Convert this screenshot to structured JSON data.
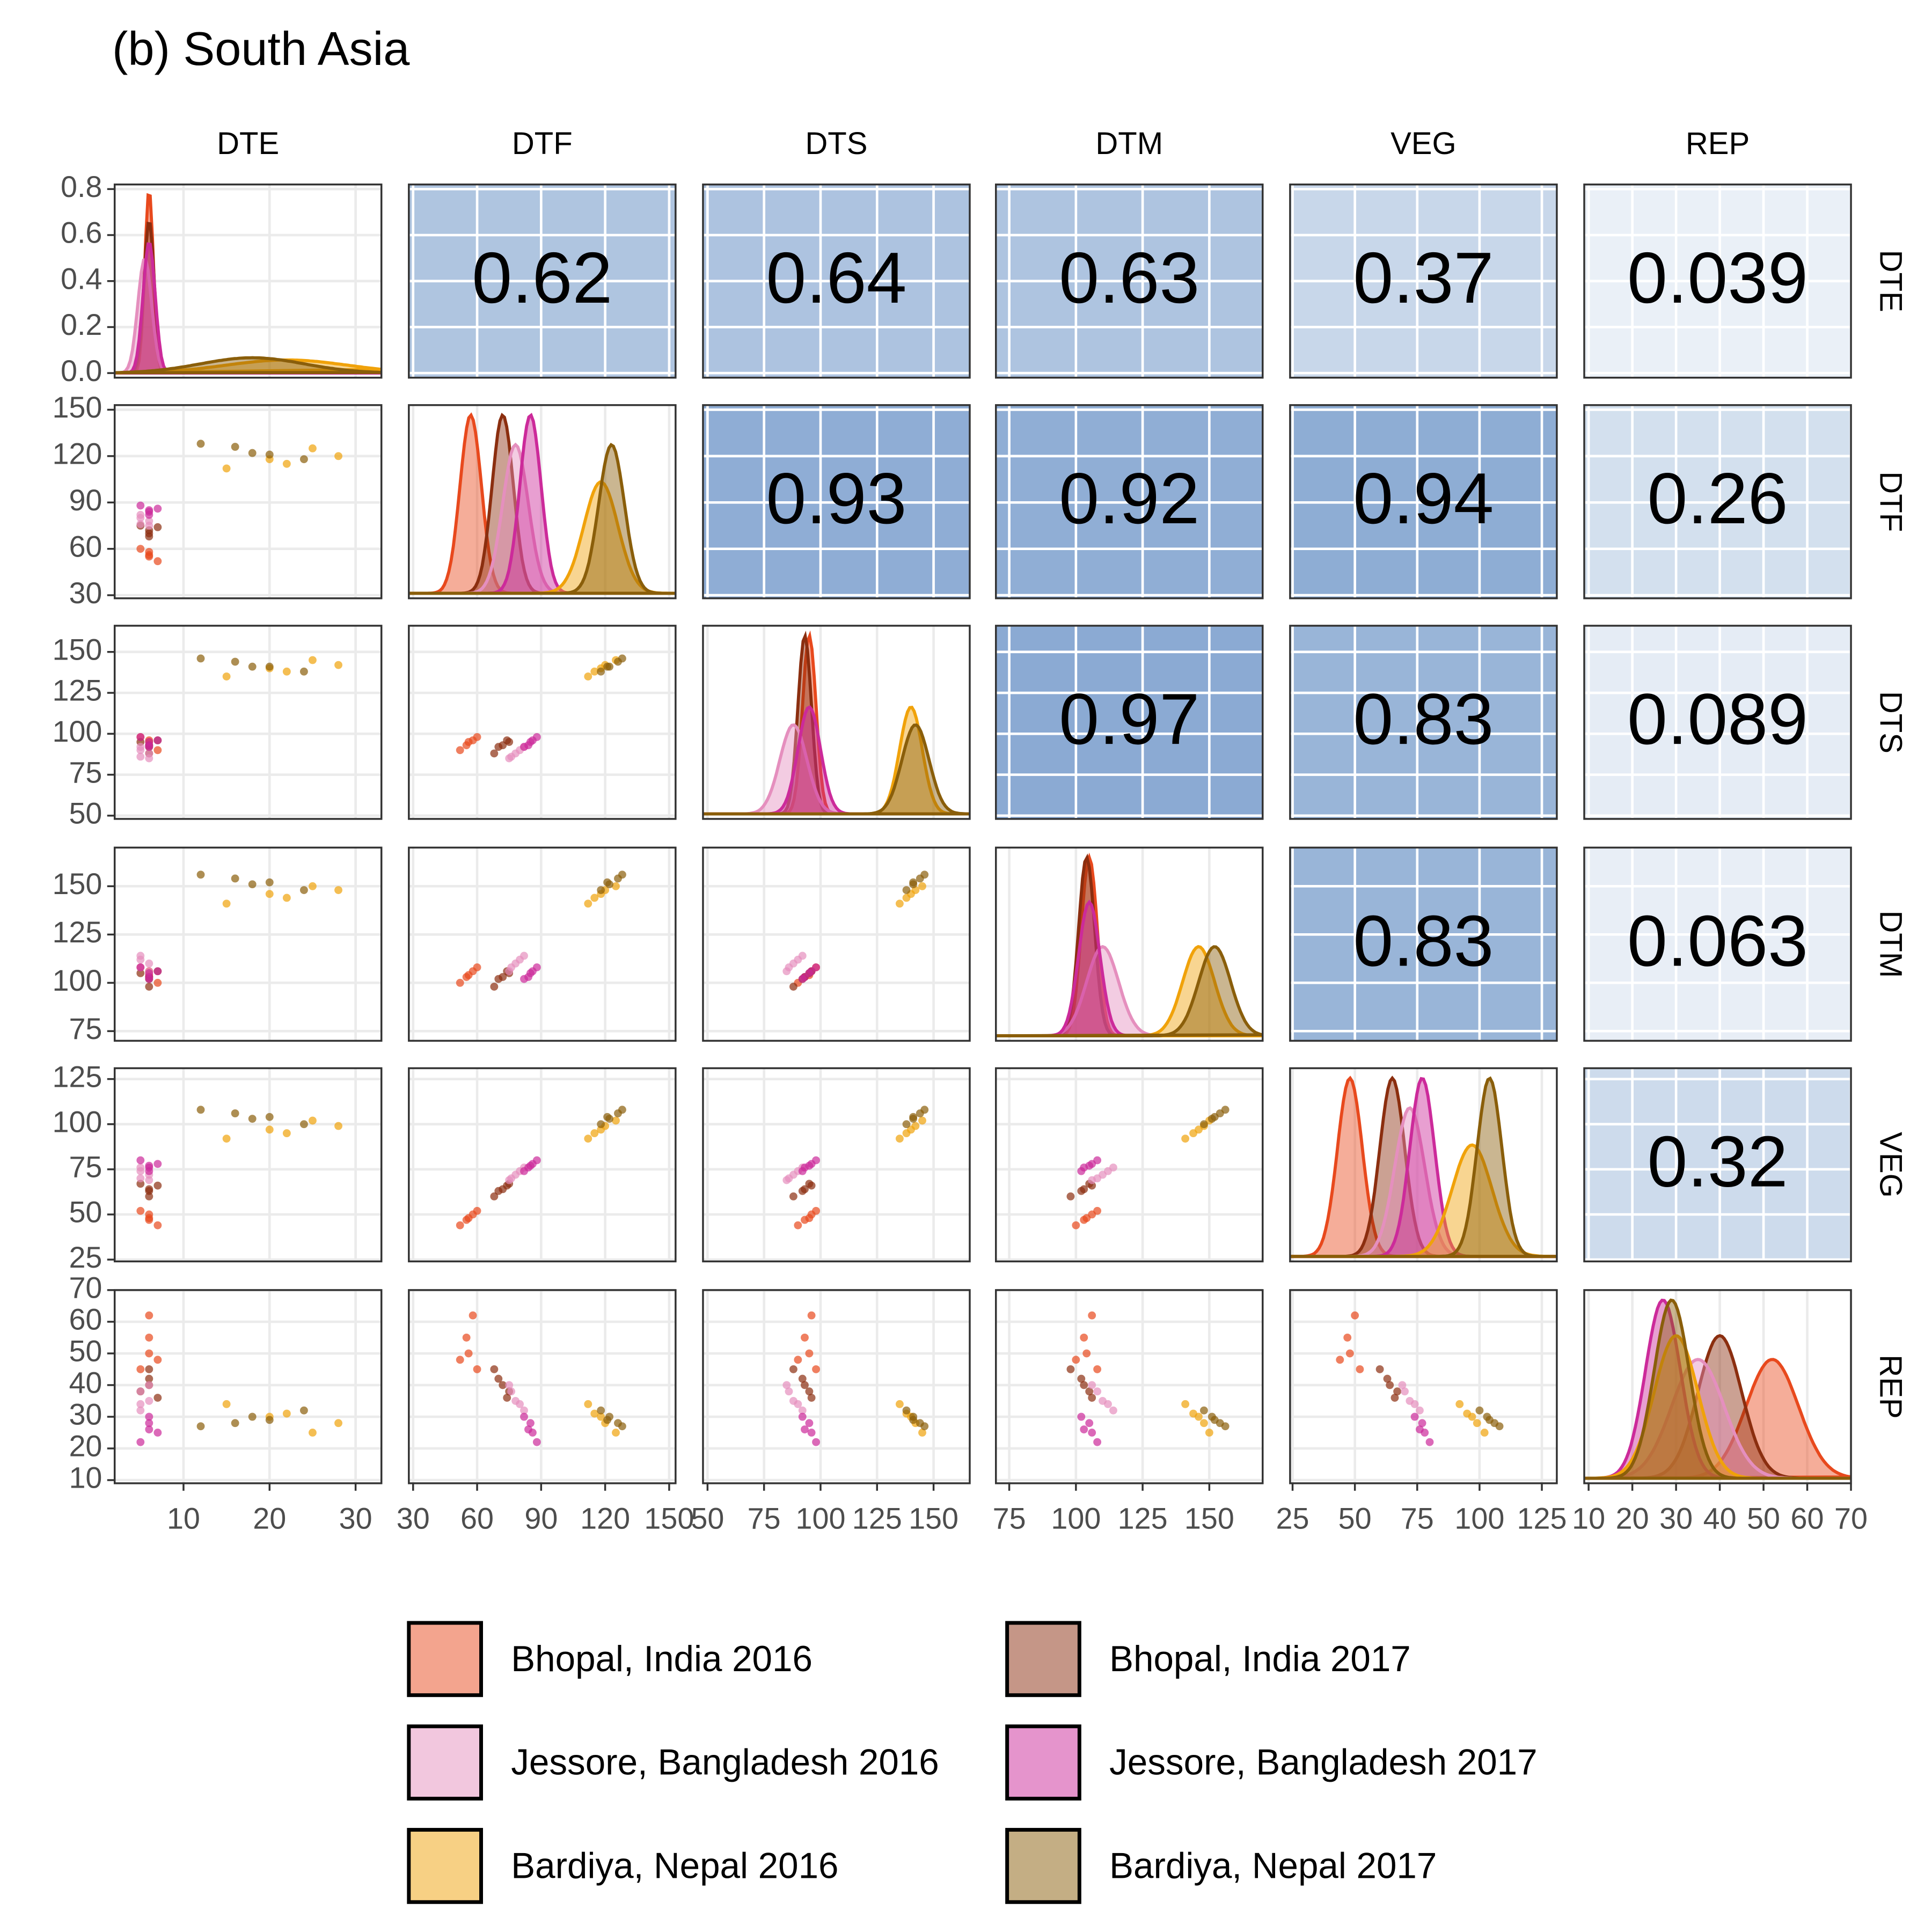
{
  "chart_data": {
    "type": "scatter-matrix",
    "title": "(b) South Asia",
    "variables": [
      "DTE",
      "DTF",
      "DTS",
      "DTM",
      "VEG",
      "REP"
    ],
    "axes": [
      {
        "lim": [
          2,
          33
        ],
        "ticks": [
          10,
          20,
          30
        ]
      },
      {
        "lim": [
          28,
          153
        ],
        "ticks": [
          30,
          60,
          90,
          120,
          150
        ]
      },
      {
        "lim": [
          48,
          166
        ],
        "ticks": [
          50,
          75,
          100,
          125,
          150
        ]
      },
      {
        "lim": [
          70,
          170
        ],
        "ticks": [
          75,
          100,
          125,
          150
        ]
      },
      {
        "lim": [
          24,
          131
        ],
        "ticks": [
          25,
          50,
          75,
          100,
          125
        ]
      },
      {
        "lim": [
          9,
          70
        ],
        "ticks": [
          10,
          20,
          30,
          40,
          50,
          60,
          70
        ]
      }
    ],
    "density_ylim": [
      -0.02,
      0.82
    ],
    "density_yticks": [
      {
        "value": 0,
        "label": "0.0"
      },
      0.2,
      0.4,
      0.6,
      0.8
    ],
    "correlations": [
      [
        null,
        0.62,
        0.64,
        0.63,
        0.37,
        0.039
      ],
      [
        null,
        null,
        0.93,
        0.92,
        0.94,
        0.26
      ],
      [
        null,
        null,
        null,
        0.97,
        0.83,
        0.089
      ],
      [
        null,
        null,
        null,
        null,
        0.83,
        0.063
      ],
      [
        null,
        null,
        null,
        null,
        null,
        0.32
      ],
      [
        null,
        null,
        null,
        null,
        null,
        null
      ]
    ],
    "correlation_colors": [
      "#eef3f8",
      "#88a8d2"
    ],
    "grid": true,
    "legend_position": "bottom",
    "series": [
      {
        "name": "Bhopal, India 2016",
        "color": "#e8491d",
        "mean": [
          6,
          57,
          95,
          105,
          48,
          52
        ],
        "sd": [
          0.5,
          5,
          3,
          3,
          5,
          6
        ],
        "points": [
          [
            6,
            55,
            93,
            103,
            47,
            55
          ],
          [
            6,
            58,
            96,
            106,
            50,
            62
          ],
          [
            7,
            52,
            90,
            100,
            44,
            48
          ],
          [
            5,
            60,
            98,
            108,
            52,
            45
          ],
          [
            6,
            56,
            95,
            104,
            48,
            50
          ]
        ]
      },
      {
        "name": "Bhopal, India 2017",
        "color": "#8b2e0f",
        "mean": [
          6,
          72,
          93,
          104,
          65,
          40
        ],
        "sd": [
          0.6,
          5,
          3,
          3,
          5,
          5
        ],
        "points": [
          [
            6,
            70,
            92,
            102,
            63,
            42
          ],
          [
            5,
            75,
            95,
            105,
            67,
            38
          ],
          [
            6,
            68,
            88,
            98,
            60,
            45
          ],
          [
            7,
            74,
            96,
            106,
            66,
            36
          ],
          [
            6,
            72,
            93,
            103,
            64,
            40
          ]
        ]
      },
      {
        "name": "Jessore, Bangladesh 2016",
        "color": "#e58fbe",
        "mean": [
          5.5,
          78,
          88,
          110,
          72,
          35
        ],
        "sd": [
          0.8,
          6,
          6,
          6,
          6,
          6
        ],
        "points": [
          [
            5,
            76,
            86,
            108,
            70,
            38
          ],
          [
            5,
            80,
            90,
            112,
            74,
            34
          ],
          [
            6,
            75,
            85,
            106,
            69,
            40
          ],
          [
            5,
            82,
            92,
            114,
            76,
            32
          ],
          [
            6,
            78,
            88,
            110,
            72,
            35
          ]
        ]
      },
      {
        "name": "Jessore, Bangladesh 2017",
        "color": "#cc2a9a",
        "mean": [
          6,
          85,
          95,
          105,
          77,
          27
        ],
        "sd": [
          0.7,
          5,
          5,
          4,
          5,
          4
        ],
        "points": [
          [
            6,
            84,
            93,
            103,
            76,
            26
          ],
          [
            5,
            88,
            98,
            108,
            80,
            22
          ],
          [
            6,
            82,
            92,
            102,
            74,
            30
          ],
          [
            7,
            86,
            96,
            106,
            78,
            25
          ],
          [
            6,
            85,
            95,
            105,
            77,
            28
          ]
        ]
      },
      {
        "name": "Bardiya, Nepal 2016",
        "color": "#f0a20a",
        "mean": [
          22,
          118,
          140,
          146,
          97,
          30
        ],
        "sd": [
          7,
          8,
          5,
          6,
          8,
          5
        ],
        "points": [
          [
            22,
            115,
            138,
            144,
            95,
            31
          ],
          [
            28,
            120,
            142,
            148,
            99,
            28
          ],
          [
            15,
            112,
            135,
            141,
            92,
            34
          ],
          [
            25,
            125,
            145,
            150,
            102,
            25
          ],
          [
            20,
            118,
            140,
            146,
            97,
            30
          ]
        ]
      },
      {
        "name": "Bardiya, Nepal 2017",
        "color": "#8a5e0a",
        "mean": [
          18,
          123,
          142,
          152,
          104,
          29
        ],
        "sd": [
          6,
          6,
          6,
          6,
          5,
          4
        ],
        "points": [
          [
            18,
            122,
            141,
            151,
            103,
            30
          ],
          [
            12,
            128,
            146,
            156,
            108,
            27
          ],
          [
            24,
            118,
            138,
            148,
            100,
            32
          ],
          [
            16,
            126,
            144,
            154,
            106,
            28
          ],
          [
            20,
            121,
            141,
            152,
            104,
            29
          ]
        ]
      }
    ]
  }
}
